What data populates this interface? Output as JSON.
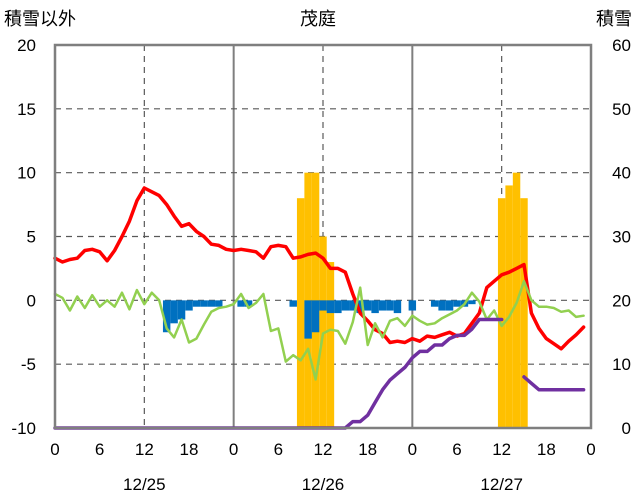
{
  "chart_data": {
    "type": "line",
    "title": "茂庭",
    "left_axis_label": "積雪以外",
    "right_axis_label": "積雪",
    "left_ylim": [
      -10,
      20
    ],
    "left_yticks": [
      -10,
      -5,
      0,
      5,
      10,
      15,
      20
    ],
    "right_ylim": [
      0,
      60
    ],
    "right_yticks": [
      0,
      10,
      20,
      30,
      40,
      50,
      60
    ],
    "x_range_hours": [
      0,
      72
    ],
    "x_tick_labels": [
      "0",
      "6",
      "12",
      "18",
      "0",
      "6",
      "12",
      "18",
      "0",
      "6",
      "12",
      "18",
      "0"
    ],
    "day_labels": [
      "12/25",
      "12/26",
      "12/27"
    ],
    "colors": {
      "red": "#ff0000",
      "green": "#92d050",
      "purple": "#7030a0",
      "orange": "#ffc000",
      "blue": "#0070c0",
      "frame": "#7f7f7f",
      "dash": "#595959"
    },
    "bars_left_axis": [
      {
        "color": "#0070c0",
        "values": [
          [
            15,
            -2.5
          ],
          [
            16,
            -1.8
          ],
          [
            17,
            -1.5
          ],
          [
            18,
            -0.8
          ],
          [
            19,
            -0.5
          ],
          [
            20,
            -0.5
          ],
          [
            21,
            -0.5
          ],
          [
            22,
            -0.5
          ],
          [
            25,
            -0.5
          ],
          [
            26,
            -0.5
          ],
          [
            32,
            -0.5
          ],
          [
            34,
            -3
          ],
          [
            35,
            -2.5
          ],
          [
            36,
            -0.8
          ],
          [
            37,
            -1
          ],
          [
            38,
            -1
          ],
          [
            39,
            -0.8
          ],
          [
            40,
            -0.8
          ],
          [
            41,
            -1
          ],
          [
            42,
            -0.8
          ],
          [
            43,
            -1
          ],
          [
            44,
            -0.8
          ],
          [
            45,
            -0.8
          ],
          [
            46,
            -1
          ],
          [
            48,
            -0.8
          ],
          [
            51,
            -0.5
          ],
          [
            52,
            -0.8
          ],
          [
            53,
            -0.8
          ],
          [
            54,
            -0.5
          ],
          [
            55,
            -0.5
          ],
          [
            56,
            -0.3
          ]
        ]
      }
    ],
    "bars_right_axis": [
      {
        "color": "#ffc000",
        "values": [
          [
            33,
            36
          ],
          [
            34,
            40
          ],
          [
            35,
            40
          ],
          [
            36,
            30
          ],
          [
            37,
            26
          ],
          [
            60,
            36
          ],
          [
            61,
            38
          ],
          [
            62,
            40
          ],
          [
            63,
            36
          ]
        ]
      }
    ],
    "series": [
      {
        "color": "#ff0000",
        "axis": "left",
        "points": [
          [
            0,
            3.3
          ],
          [
            1,
            3
          ],
          [
            2,
            3.2
          ],
          [
            3,
            3.3
          ],
          [
            4,
            3.9
          ],
          [
            5,
            4
          ],
          [
            6,
            3.8
          ],
          [
            7,
            3.1
          ],
          [
            8,
            3.9
          ],
          [
            9,
            5
          ],
          [
            10,
            6.2
          ],
          [
            11,
            7.8
          ],
          [
            12,
            8.8
          ],
          [
            13,
            8.5
          ],
          [
            14,
            8.2
          ],
          [
            15,
            7.5
          ],
          [
            16,
            6.6
          ],
          [
            17,
            5.8
          ],
          [
            18,
            6
          ],
          [
            19,
            5.4
          ],
          [
            20,
            5
          ],
          [
            21,
            4.4
          ],
          [
            22,
            4.3
          ],
          [
            23,
            4
          ],
          [
            24,
            3.9
          ],
          [
            25,
            4
          ],
          [
            26,
            3.9
          ],
          [
            27,
            3.8
          ],
          [
            28,
            3.3
          ],
          [
            29,
            4.2
          ],
          [
            30,
            4.3
          ],
          [
            31,
            4.2
          ],
          [
            32,
            3.3
          ],
          [
            33,
            3.4
          ],
          [
            34,
            3.6
          ],
          [
            35,
            3.7
          ],
          [
            36,
            3.3
          ],
          [
            37,
            2.5
          ],
          [
            38,
            2.5
          ],
          [
            39,
            2.2
          ],
          [
            40,
            0.5
          ],
          [
            41,
            -1
          ],
          [
            42,
            -1.6
          ],
          [
            43,
            -2.3
          ],
          [
            44,
            -2.6
          ],
          [
            45,
            -3.3
          ],
          [
            46,
            -3.2
          ],
          [
            47,
            -3.3
          ],
          [
            48,
            -3
          ],
          [
            49,
            -3.2
          ],
          [
            50,
            -2.8
          ],
          [
            51,
            -2.9
          ],
          [
            52,
            -2.7
          ],
          [
            53,
            -2.5
          ],
          [
            54,
            -2.8
          ],
          [
            55,
            -2.6
          ],
          [
            56,
            -1.8
          ],
          [
            57,
            -1
          ],
          [
            58,
            1
          ],
          [
            59,
            1.5
          ],
          [
            60,
            2
          ],
          [
            61,
            2.2
          ],
          [
            62,
            2.5
          ],
          [
            63,
            2.8
          ],
          [
            64,
            -1
          ],
          [
            65,
            -2.2
          ],
          [
            66,
            -3
          ],
          [
            67,
            -3.4
          ],
          [
            68,
            -3.8
          ],
          [
            69,
            -3.2
          ],
          [
            70,
            -2.7
          ],
          [
            71,
            -2.1
          ]
        ]
      },
      {
        "color": "#92d050",
        "axis": "left",
        "points": [
          [
            0,
            0.5
          ],
          [
            1,
            0.2
          ],
          [
            2,
            -0.8
          ],
          [
            3,
            0.3
          ],
          [
            4,
            -0.6
          ],
          [
            5,
            0.4
          ],
          [
            6,
            -0.5
          ],
          [
            7,
            0
          ],
          [
            8,
            -0.5
          ],
          [
            9,
            0.6
          ],
          [
            10,
            -0.7
          ],
          [
            11,
            0.8
          ],
          [
            12,
            -0.3
          ],
          [
            13,
            0.6
          ],
          [
            14,
            0
          ],
          [
            15,
            -2.2
          ],
          [
            16,
            -2.9
          ],
          [
            17,
            -1.5
          ],
          [
            18,
            -3.3
          ],
          [
            19,
            -3
          ],
          [
            20,
            -1.9
          ],
          [
            21,
            -0.9
          ],
          [
            22,
            -0.6
          ],
          [
            23,
            -0.5
          ],
          [
            24,
            -0.3
          ],
          [
            25,
            0.5
          ],
          [
            26,
            -0.6
          ],
          [
            27,
            -0.2
          ],
          [
            28,
            0.5
          ],
          [
            29,
            -2.4
          ],
          [
            30,
            -2.2
          ],
          [
            31,
            -4.8
          ],
          [
            32,
            -4.3
          ],
          [
            33,
            -4.7
          ],
          [
            34,
            -3.8
          ],
          [
            35,
            -6.2
          ],
          [
            36,
            -2.6
          ],
          [
            37,
            -2.3
          ],
          [
            38,
            -2.4
          ],
          [
            39,
            -3.4
          ],
          [
            40,
            -1.7
          ],
          [
            41,
            1
          ],
          [
            42,
            -3.5
          ],
          [
            43,
            -1.8
          ],
          [
            44,
            -2.9
          ],
          [
            45,
            -1.6
          ],
          [
            46,
            -1.4
          ],
          [
            47,
            -2
          ],
          [
            48,
            -1.2
          ],
          [
            49,
            -1.6
          ],
          [
            50,
            -1.9
          ],
          [
            51,
            -1.8
          ],
          [
            52,
            -1.4
          ],
          [
            53,
            -1.1
          ],
          [
            54,
            -0.8
          ],
          [
            55,
            -0.3
          ],
          [
            56,
            0.6
          ],
          [
            57,
            -0.1
          ],
          [
            58,
            -1.5
          ],
          [
            59,
            -0.8
          ],
          [
            60,
            -2
          ],
          [
            61,
            -1.3
          ],
          [
            62,
            -0.2
          ],
          [
            63,
            1.5
          ],
          [
            64,
            0
          ],
          [
            65,
            -0.5
          ],
          [
            66,
            -0.5
          ],
          [
            67,
            -0.6
          ],
          [
            68,
            -0.9
          ],
          [
            69,
            -0.8
          ],
          [
            70,
            -1.3
          ],
          [
            71,
            -1.2
          ]
        ]
      },
      {
        "color": "#7030a0",
        "axis": "right",
        "points": [
          [
            0,
            0
          ],
          [
            1,
            0
          ],
          [
            2,
            0
          ],
          [
            3,
            0
          ],
          [
            4,
            0
          ],
          [
            5,
            0
          ],
          [
            6,
            0
          ],
          [
            7,
            0
          ],
          [
            8,
            0
          ],
          [
            9,
            0
          ],
          [
            10,
            0
          ],
          [
            11,
            0
          ],
          [
            12,
            0
          ],
          [
            13,
            0
          ],
          [
            14,
            0
          ],
          [
            15,
            0
          ],
          [
            16,
            0
          ],
          [
            17,
            0
          ],
          [
            18,
            0
          ],
          [
            19,
            0
          ],
          [
            20,
            0
          ],
          [
            21,
            0
          ],
          [
            22,
            0
          ],
          [
            23,
            0
          ],
          [
            24,
            0
          ],
          [
            25,
            0
          ],
          [
            26,
            0
          ],
          [
            27,
            0
          ],
          [
            28,
            0
          ],
          [
            29,
            0
          ],
          [
            30,
            0
          ],
          [
            31,
            0
          ],
          [
            32,
            0
          ],
          [
            33,
            0
          ],
          [
            34,
            0
          ],
          [
            35,
            0
          ],
          [
            36,
            0
          ],
          [
            37,
            0
          ],
          [
            38,
            0
          ],
          [
            39,
            0
          ],
          [
            40,
            1
          ],
          [
            41,
            1
          ],
          [
            42,
            2
          ],
          [
            43,
            4
          ],
          [
            44,
            6
          ],
          [
            45,
            7.5
          ],
          [
            46,
            8.5
          ],
          [
            47,
            9.5
          ],
          [
            48,
            11
          ],
          [
            49,
            12
          ],
          [
            50,
            12
          ],
          [
            51,
            13
          ],
          [
            52,
            13
          ],
          [
            53,
            14
          ],
          [
            54,
            14.5
          ],
          [
            55,
            14.5
          ],
          [
            56,
            15.5
          ],
          [
            57,
            17
          ],
          [
            58,
            17
          ],
          [
            59,
            17
          ],
          [
            60,
            17
          ]
        ]
      },
      {
        "color": "#7030a0",
        "axis": "right",
        "points": [
          [
            63,
            8
          ],
          [
            64,
            7
          ],
          [
            65,
            6
          ],
          [
            66,
            6
          ],
          [
            67,
            6
          ],
          [
            68,
            6
          ],
          [
            69,
            6
          ],
          [
            70,
            6
          ],
          [
            71,
            6
          ]
        ]
      }
    ]
  }
}
